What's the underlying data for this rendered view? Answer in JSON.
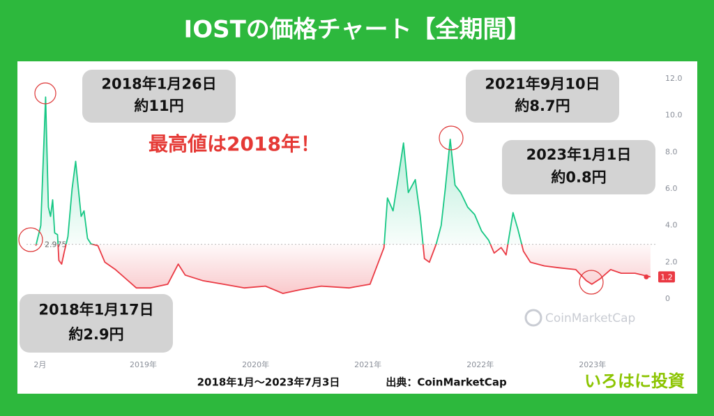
{
  "chart_data": {
    "type": "line",
    "title": "IOSTの価格チャート【全期間】",
    "x": [
      2018.043,
      2018.087,
      2018.13,
      2018.155,
      2018.174,
      2018.193,
      2018.211,
      2018.236,
      2018.248,
      2018.273,
      2018.298,
      2018.329,
      2018.366,
      2018.398,
      2018.422,
      2018.447,
      2018.472,
      2018.503,
      2018.534,
      2018.596,
      2018.658,
      2018.752,
      2018.845,
      2018.938,
      2019.062,
      2019.217,
      2019.311,
      2019.373,
      2019.528,
      2019.714,
      2019.901,
      2020.087,
      2020.242,
      2020.398,
      2020.584,
      2020.832,
      2021.019,
      2021.081,
      2021.143,
      2021.174,
      2021.224,
      2021.267,
      2021.317,
      2021.36,
      2021.422,
      2021.466,
      2021.503,
      2021.547,
      2021.609,
      2021.652,
      2021.689,
      2021.733,
      2021.776,
      2021.826,
      2021.888,
      2021.95,
      2022.012,
      2022.075,
      2022.124,
      2022.186,
      2022.23,
      2022.292,
      2022.335,
      2022.385,
      2022.447,
      2022.571,
      2022.696,
      2022.851,
      2022.944,
      2022.994,
      2023.068,
      2023.161,
      2023.255,
      2023.379,
      2023.516
    ],
    "values": [
      2.9,
      4.0,
      11.0,
      5.0,
      4.5,
      5.4,
      3.6,
      3.5,
      2.1,
      1.9,
      2.6,
      3.4,
      6.0,
      7.5,
      6.0,
      4.5,
      4.8,
      3.3,
      3.0,
      2.9,
      2.0,
      1.6,
      1.1,
      0.6,
      0.6,
      0.8,
      1.9,
      1.3,
      1.0,
      0.8,
      0.6,
      0.7,
      0.3,
      0.5,
      0.7,
      0.6,
      0.8,
      1.8,
      2.8,
      5.5,
      4.8,
      6.5,
      8.5,
      5.8,
      6.5,
      4.5,
      2.2,
      2.0,
      3.0,
      4.0,
      6.0,
      8.7,
      6.2,
      5.8,
      5.0,
      4.6,
      3.7,
      3.2,
      2.5,
      2.8,
      2.4,
      4.7,
      3.8,
      2.6,
      2.0,
      1.8,
      1.7,
      1.6,
      1.0,
      0.8,
      1.1,
      1.6,
      1.4,
      1.4,
      1.2
    ],
    "colors": {
      "up": "#16c784",
      "down": "#ea3943"
    },
    "xlim": [
      2017.96,
      2023.56
    ],
    "xticks": [
      {
        "value": 2018.08,
        "label": "2月"
      },
      {
        "value": 2019,
        "label": "2019年"
      },
      {
        "value": 2020,
        "label": "2020年"
      },
      {
        "value": 2021,
        "label": "2021年"
      },
      {
        "value": 2022,
        "label": "2022年"
      },
      {
        "value": 2023,
        "label": "2023年"
      }
    ],
    "ylim": [
      0,
      12
    ],
    "yticks": [
      0,
      {
        "value": 2,
        "label": "2.0"
      },
      {
        "value": 4,
        "label": "4.0"
      },
      {
        "value": 6,
        "label": "6.0"
      },
      {
        "value": 8,
        "label": "8.0"
      },
      {
        "value": 10,
        "label": "10.0"
      },
      {
        "value": 12,
        "label": "12.0"
      }
    ],
    "grid": false,
    "baseline": {
      "value": 2.975,
      "label": "2.975"
    },
    "current_price": {
      "value": 1.2,
      "label": "1.2"
    },
    "annotations": [
      {
        "lines": [
          "2018年1月26日",
          "約11円"
        ]
      },
      {
        "lines": [
          "2021年9月10日",
          "約8.7円"
        ]
      },
      {
        "lines": [
          "2023年1月1日",
          "約0.8円"
        ]
      },
      {
        "lines": [
          "2018年1月17日",
          "約2.9円"
        ]
      }
    ],
    "highlight": "最高値は2018年！",
    "watermark": "CoinMarketCap",
    "period": "2018年1月〜2023年7月3日",
    "source": "出典：CoinMarketCap",
    "brand": "いろはに投資"
  }
}
